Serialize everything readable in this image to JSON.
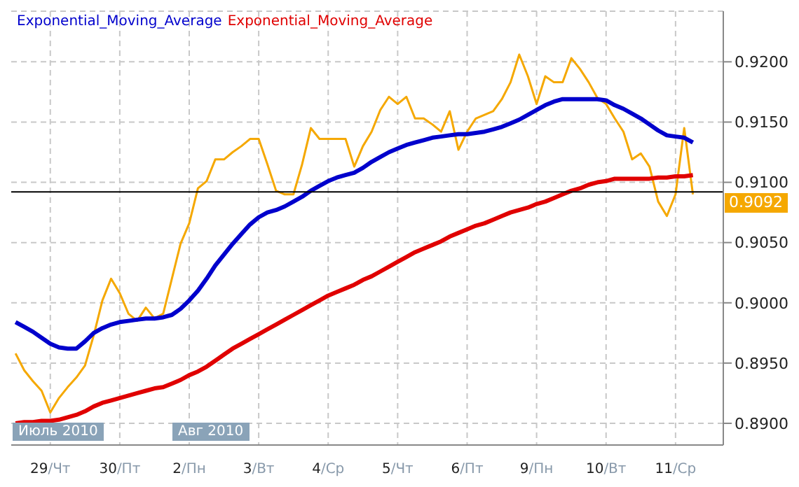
{
  "chart_data": {
    "type": "line",
    "categories": [
      null,
      null,
      null,
      null,
      "29/Чт",
      null,
      null,
      null,
      null,
      null,
      null,
      null,
      "30/Пт",
      null,
      null,
      null,
      null,
      null,
      null,
      null,
      "2/Пн",
      null,
      null,
      null,
      null,
      null,
      null,
      null,
      "3/Вт",
      null,
      null,
      null,
      null,
      null,
      null,
      null,
      "4/Ср",
      null,
      null,
      null,
      null,
      null,
      null,
      null,
      "5/Чт",
      null,
      null,
      null,
      null,
      null,
      null,
      null,
      "6/Пт",
      null,
      null,
      null,
      null,
      null,
      null,
      null,
      "9/Пн",
      null,
      null,
      null,
      null,
      null,
      null,
      null,
      "10/Вт",
      null,
      null,
      null,
      null,
      null,
      null,
      null,
      "11/Ср",
      null,
      null,
      null,
      null,
      null
    ],
    "series": [
      {
        "color": "#f5a800",
        "values": [
          0.8958,
          0.8944,
          0.8935,
          0.8927,
          0.8909,
          0.8921,
          0.893,
          0.8938,
          0.8948,
          0.8973,
          0.9002,
          0.902,
          0.9008,
          0.8991,
          0.8985,
          0.8996,
          0.8987,
          0.8991,
          0.902,
          0.9049,
          0.9066,
          0.9095,
          0.9101,
          0.9119,
          0.9119,
          0.9125,
          0.913,
          0.9136,
          0.9136,
          0.9115,
          0.9093,
          0.909,
          0.909,
          0.9115,
          0.9145,
          0.9136,
          0.9136,
          0.9136,
          0.9136,
          0.9113,
          0.913,
          0.9142,
          0.916,
          0.9171,
          0.9165,
          0.9171,
          0.9153,
          0.9153,
          0.9148,
          0.9142,
          0.9159,
          0.9127,
          0.9142,
          0.9153,
          0.9156,
          0.9159,
          0.9169,
          0.9183,
          0.9206,
          0.9188,
          0.9165,
          0.9188,
          0.9183,
          0.9183,
          0.9203,
          0.9194,
          0.9183,
          0.917,
          0.9165,
          0.9153,
          0.9142,
          0.9119,
          0.9124,
          0.9113,
          0.9084,
          0.9072,
          0.909,
          0.9145,
          0.909,
          null,
          null,
          null
        ]
      },
      {
        "name": "Exponential_Moving_Average",
        "color": "#0000cc",
        "values": [
          0.8984,
          0.898,
          0.8976,
          0.8971,
          0.8966,
          0.8963,
          0.8962,
          0.8962,
          0.8968,
          0.8975,
          0.8979,
          0.8982,
          0.8984,
          0.8985,
          0.8986,
          0.8987,
          0.8987,
          0.8988,
          0.899,
          0.8995,
          0.9002,
          0.901,
          0.902,
          0.9031,
          0.904,
          0.9049,
          0.9057,
          0.9065,
          0.9071,
          0.9075,
          0.9077,
          0.908,
          0.9084,
          0.9088,
          0.9093,
          0.9097,
          0.9101,
          0.9104,
          0.9106,
          0.9108,
          0.9112,
          0.9117,
          0.9121,
          0.9125,
          0.9128,
          0.9131,
          0.9133,
          0.9135,
          0.9137,
          0.9138,
          0.9139,
          0.914,
          0.914,
          0.9141,
          0.9142,
          0.9144,
          0.9146,
          0.9149,
          0.9152,
          0.9156,
          0.916,
          0.9164,
          0.9167,
          0.9169,
          0.9169,
          0.9169,
          0.9169,
          0.9169,
          0.9168,
          0.9164,
          0.9161,
          0.9157,
          0.9153,
          0.9148,
          0.9143,
          0.9139,
          0.9138,
          0.9137,
          0.9133,
          null,
          null,
          null
        ]
      },
      {
        "name": "Exponential_Moving_Average",
        "color": "#e00000",
        "values": [
          0.89,
          0.8901,
          0.8901,
          0.8902,
          0.8902,
          0.8903,
          0.8905,
          0.8907,
          0.891,
          0.8914,
          0.8917,
          0.8919,
          0.8921,
          0.8923,
          0.8925,
          0.8927,
          0.8929,
          0.893,
          0.8933,
          0.8936,
          0.894,
          0.8943,
          0.8947,
          0.8952,
          0.8957,
          0.8962,
          0.8966,
          0.897,
          0.8974,
          0.8978,
          0.8982,
          0.8986,
          0.899,
          0.8994,
          0.8998,
          0.9002,
          0.9006,
          0.9009,
          0.9012,
          0.9015,
          0.9019,
          0.9022,
          0.9026,
          0.903,
          0.9034,
          0.9038,
          0.9042,
          0.9045,
          0.9048,
          0.9051,
          0.9055,
          0.9058,
          0.9061,
          0.9064,
          0.9066,
          0.9069,
          0.9072,
          0.9075,
          0.9077,
          0.9079,
          0.9082,
          0.9084,
          0.9087,
          0.909,
          0.9093,
          0.9095,
          0.9098,
          0.91,
          0.9101,
          0.9103,
          0.9103,
          0.9103,
          0.9103,
          0.9103,
          0.9104,
          0.9104,
          0.9105,
          0.9105,
          0.9106,
          null,
          null,
          null
        ]
      }
    ],
    "ylim": [
      0.8882,
      0.9242
    ],
    "yticks": [
      {
        "value": 0.89,
        "label": "0.8900"
      },
      {
        "value": 0.895,
        "label": "0.8950"
      },
      {
        "value": 0.9,
        "label": "0.9000"
      },
      {
        "value": 0.905,
        "label": "0.9050"
      },
      {
        "value": 0.91,
        "label": "0.9100"
      },
      {
        "value": 0.915,
        "label": "0.9150"
      },
      {
        "value": 0.92,
        "label": "0.9200"
      }
    ],
    "ref_lines": [
      {
        "axis": "y",
        "value": 0.9092,
        "label": "0.9092",
        "color": "#000000"
      }
    ],
    "annotations": [
      "Июль 2010",
      "Авг 2010"
    ],
    "grid": true,
    "legend": "top left",
    "marker": "none",
    "line_style": "solid"
  }
}
